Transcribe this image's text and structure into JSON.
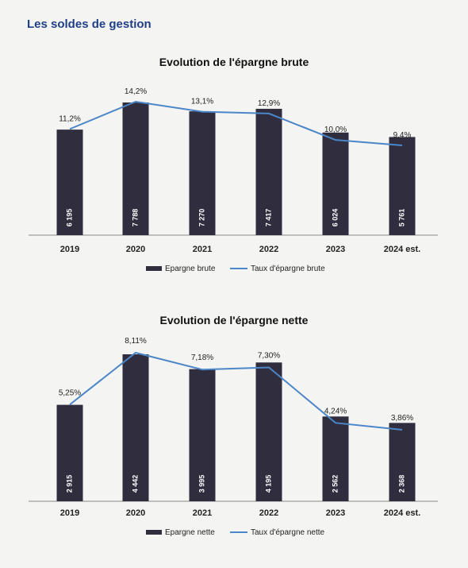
{
  "page": {
    "section_title": "Les soldes de gestion"
  },
  "colors": {
    "bar": "#2f2d3e",
    "line": "#4b86c8",
    "title": "#1f3f87"
  },
  "chart_data": [
    {
      "type": "bar",
      "title": "Evolution de l'épargne brute",
      "categories": [
        "2019",
        "2020",
        "2021",
        "2022",
        "2023",
        "2024 est."
      ],
      "series": [
        {
          "name": "Epargne brute",
          "type": "bar",
          "values": [
            6195,
            7788,
            7270,
            7417,
            6024,
            5761
          ],
          "labels": [
            "6 195",
            "7 788",
            "7 270",
            "7 417",
            "6 024",
            "5 761"
          ]
        },
        {
          "name": "Taux d'épargne brute",
          "type": "line",
          "values": [
            11.2,
            14.2,
            13.1,
            12.9,
            10.0,
            9.4
          ],
          "labels": [
            "11,2%",
            "14,2%",
            "13,1%",
            "12,9%",
            "10,0%",
            "9,4%"
          ]
        }
      ],
      "legend": "bottom"
    },
    {
      "type": "bar",
      "title": "Evolution de l'épargne nette",
      "categories": [
        "2019",
        "2020",
        "2021",
        "2022",
        "2023",
        "2024 est."
      ],
      "series": [
        {
          "name": "Epargne nette",
          "type": "bar",
          "values": [
            2915,
            4442,
            3995,
            4195,
            2562,
            2368
          ],
          "labels": [
            "2 915",
            "4 442",
            "3 995",
            "4 195",
            "2 562",
            "2 368"
          ]
        },
        {
          "name": "Taux d'épargne nette",
          "type": "line",
          "values": [
            5.25,
            8.11,
            7.18,
            7.3,
            4.24,
            3.86
          ],
          "labels": [
            "5,25%",
            "8,11%",
            "7,18%",
            "7,30%",
            "4,24%",
            "3,86%"
          ]
        }
      ],
      "legend": "bottom"
    }
  ]
}
